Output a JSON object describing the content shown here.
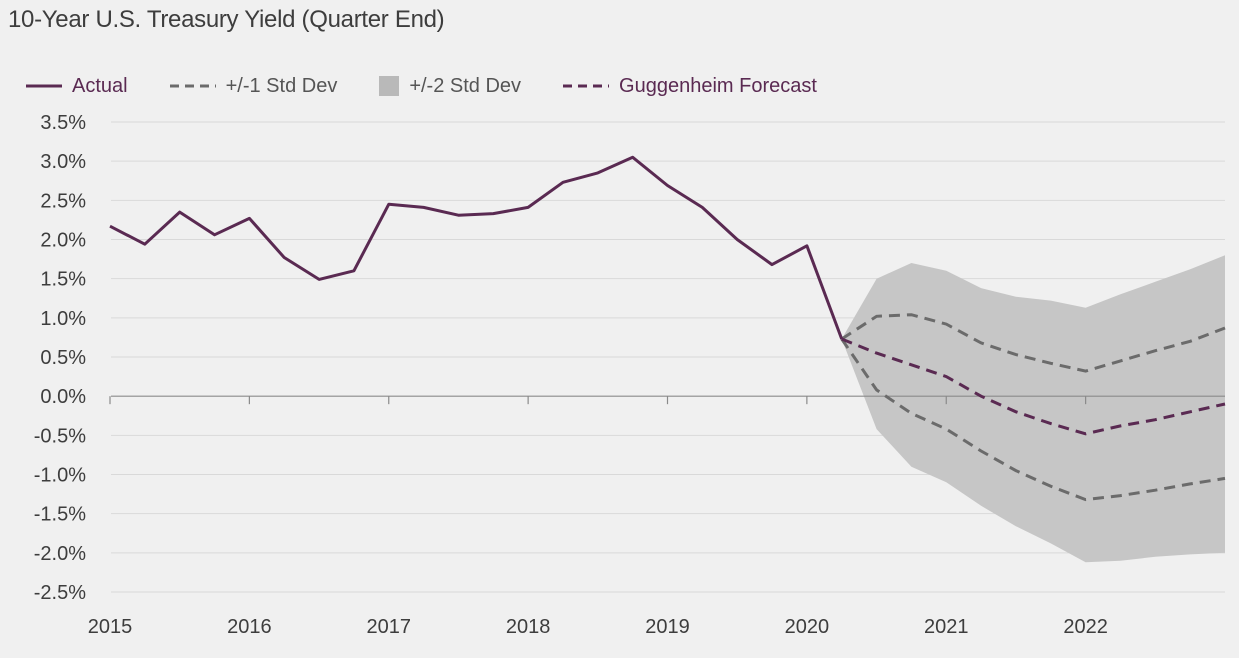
{
  "chart_data": {
    "type": "line",
    "title": "10-Year U.S. Treasury Yield (Quarter End)",
    "xlabel": "",
    "ylabel": "",
    "grid": true,
    "legend_position": "top",
    "x_ticks": [
      "2015",
      "2016",
      "2017",
      "2018",
      "2019",
      "2020",
      "2021",
      "2022"
    ],
    "x_range": [
      2015.0,
      2023.0
    ],
    "y_ticks": [
      "3.5%",
      "3.0%",
      "2.5%",
      "2.0%",
      "1.5%",
      "1.0%",
      "0.5%",
      "0.0%",
      "-0.5%",
      "-1.0%",
      "-1.5%",
      "-2.0%",
      "-2.5%"
    ],
    "ylim": [
      -2.5,
      3.5
    ],
    "units": "%",
    "colors": {
      "actual": "#5a2a52",
      "forecast": "#5a2a52",
      "std1": "#6b6b6b",
      "std2": "#c6c6c6",
      "grid": "#d9d9d9",
      "axis": "#8a8a8a"
    },
    "legend": {
      "actual": "Actual",
      "std1": "+/-1 Std Dev",
      "std2": "+/-2 Std Dev",
      "forecast": "Guggenheim Forecast"
    },
    "series": [
      {
        "name": "Actual",
        "style": "solid",
        "points": [
          [
            2015.0,
            2.17
          ],
          [
            2015.25,
            1.94
          ],
          [
            2015.5,
            2.35
          ],
          [
            2015.75,
            2.06
          ],
          [
            2016.0,
            2.27
          ],
          [
            2016.25,
            1.77
          ],
          [
            2016.5,
            1.49
          ],
          [
            2016.75,
            1.6
          ],
          [
            2017.0,
            2.45
          ],
          [
            2017.25,
            2.41
          ],
          [
            2017.5,
            2.31
          ],
          [
            2017.75,
            2.33
          ],
          [
            2018.0,
            2.41
          ],
          [
            2018.25,
            2.73
          ],
          [
            2018.5,
            2.85
          ],
          [
            2018.75,
            3.05
          ],
          [
            2019.0,
            2.69
          ],
          [
            2019.25,
            2.41
          ],
          [
            2019.5,
            2.0
          ],
          [
            2019.75,
            1.68
          ],
          [
            2020.0,
            1.92
          ],
          [
            2020.25,
            0.73
          ]
        ]
      },
      {
        "name": "Guggenheim Forecast",
        "style": "dashed",
        "points": [
          [
            2020.25,
            0.73
          ],
          [
            2020.5,
            0.55
          ],
          [
            2020.75,
            0.4
          ],
          [
            2021.0,
            0.25
          ],
          [
            2021.25,
            0.0
          ],
          [
            2021.5,
            -0.2
          ],
          [
            2021.75,
            -0.35
          ],
          [
            2022.0,
            -0.48
          ],
          [
            2022.25,
            -0.38
          ],
          [
            2022.5,
            -0.3
          ],
          [
            2022.75,
            -0.2
          ],
          [
            2023.0,
            -0.1
          ]
        ]
      },
      {
        "name": "+/-1 Std Dev",
        "style": "dashed",
        "upper": [
          [
            2020.25,
            0.73
          ],
          [
            2020.5,
            1.02
          ],
          [
            2020.75,
            1.04
          ],
          [
            2021.0,
            0.92
          ],
          [
            2021.25,
            0.68
          ],
          [
            2021.5,
            0.53
          ],
          [
            2021.75,
            0.42
          ],
          [
            2022.0,
            0.32
          ],
          [
            2022.25,
            0.45
          ],
          [
            2022.5,
            0.58
          ],
          [
            2022.75,
            0.7
          ],
          [
            2023.0,
            0.87
          ]
        ],
        "lower": [
          [
            2020.25,
            0.73
          ],
          [
            2020.5,
            0.08
          ],
          [
            2020.75,
            -0.22
          ],
          [
            2021.0,
            -0.42
          ],
          [
            2021.25,
            -0.7
          ],
          [
            2021.5,
            -0.95
          ],
          [
            2021.75,
            -1.15
          ],
          [
            2022.0,
            -1.32
          ],
          [
            2022.25,
            -1.27
          ],
          [
            2022.5,
            -1.2
          ],
          [
            2022.75,
            -1.12
          ],
          [
            2023.0,
            -1.05
          ]
        ]
      },
      {
        "name": "+/-2 Std Dev",
        "style": "band",
        "upper": [
          [
            2020.25,
            0.73
          ],
          [
            2020.5,
            1.5
          ],
          [
            2020.75,
            1.7
          ],
          [
            2021.0,
            1.6
          ],
          [
            2021.25,
            1.38
          ],
          [
            2021.5,
            1.27
          ],
          [
            2021.75,
            1.22
          ],
          [
            2022.0,
            1.13
          ],
          [
            2022.25,
            1.3
          ],
          [
            2022.5,
            1.46
          ],
          [
            2022.75,
            1.62
          ],
          [
            2023.0,
            1.8
          ]
        ],
        "lower": [
          [
            2020.25,
            0.73
          ],
          [
            2020.5,
            -0.42
          ],
          [
            2020.75,
            -0.9
          ],
          [
            2021.0,
            -1.1
          ],
          [
            2021.25,
            -1.4
          ],
          [
            2021.5,
            -1.66
          ],
          [
            2021.75,
            -1.88
          ],
          [
            2022.0,
            -2.12
          ],
          [
            2022.25,
            -2.1
          ],
          [
            2022.5,
            -2.05
          ],
          [
            2022.75,
            -2.02
          ],
          [
            2023.0,
            -2.0
          ]
        ]
      }
    ]
  }
}
